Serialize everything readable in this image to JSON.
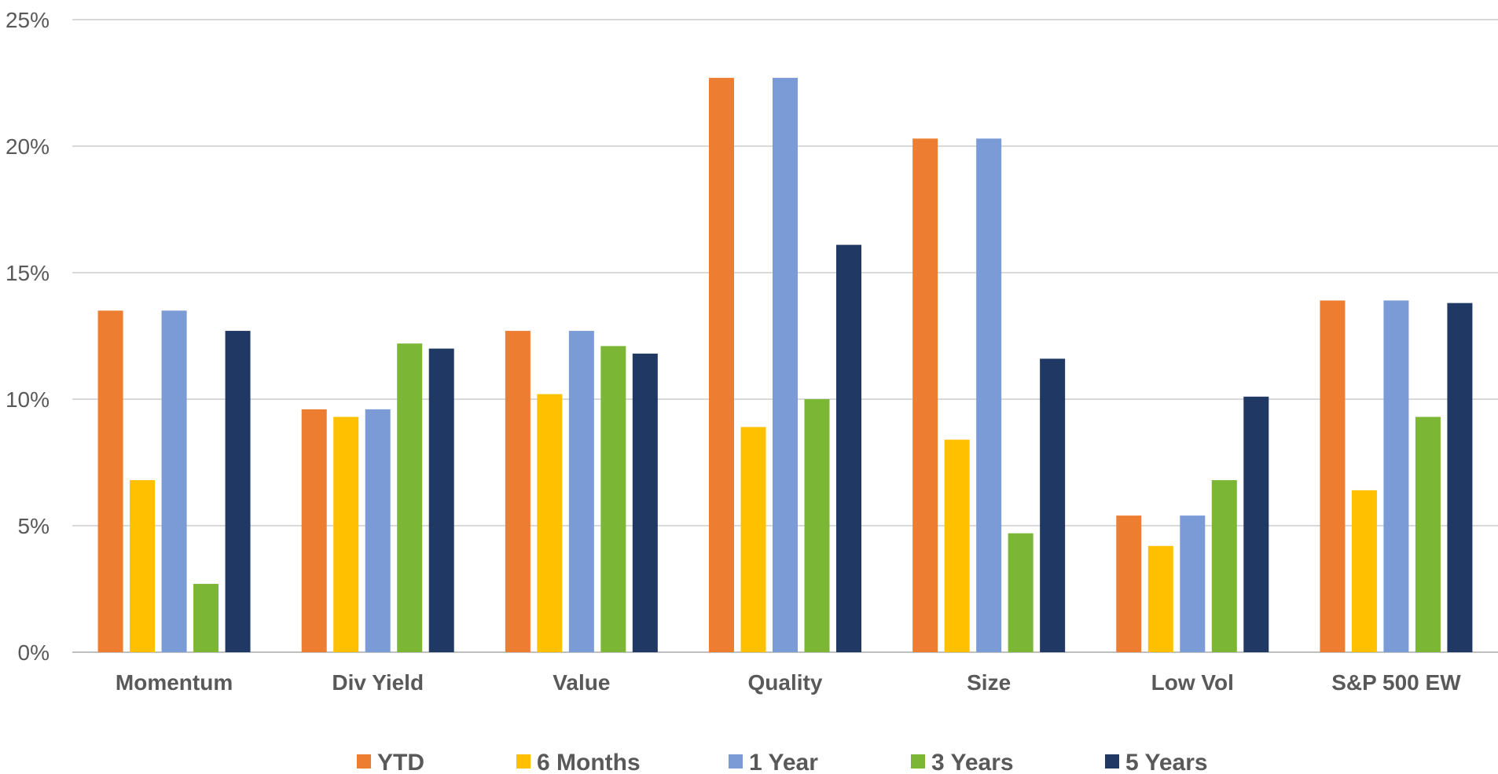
{
  "chart_data": {
    "type": "bar",
    "categories": [
      "Momentum",
      "Div Yield",
      "Value",
      "Quality",
      "Size",
      "Low Vol",
      "S&P 500 EW"
    ],
    "series": [
      {
        "name": "YTD",
        "color": "#ED7D31",
        "values": [
          13.5,
          9.6,
          12.7,
          22.7,
          20.3,
          5.4,
          13.9
        ]
      },
      {
        "name": "6 Months",
        "color": "#FFC000",
        "values": [
          6.8,
          9.3,
          10.2,
          8.9,
          8.4,
          4.2,
          6.4
        ]
      },
      {
        "name": "1 Year",
        "color": "#7A9BD6",
        "values": [
          13.5,
          9.6,
          12.7,
          22.7,
          20.3,
          5.4,
          13.9
        ]
      },
      {
        "name": "3 Years",
        "color": "#7BB734",
        "values": [
          2.7,
          12.2,
          12.1,
          10.0,
          4.7,
          6.8,
          9.3
        ]
      },
      {
        "name": "5 Years",
        "color": "#203864",
        "values": [
          12.7,
          12.0,
          11.8,
          16.1,
          11.6,
          10.1,
          13.8
        ]
      }
    ],
    "yticks": [
      "0%",
      "5%",
      "10%",
      "15%",
      "20%",
      "25%"
    ],
    "ylim": [
      0,
      25
    ],
    "grid": true,
    "legend": "bottom",
    "title": "",
    "xlabel": "",
    "ylabel": ""
  }
}
